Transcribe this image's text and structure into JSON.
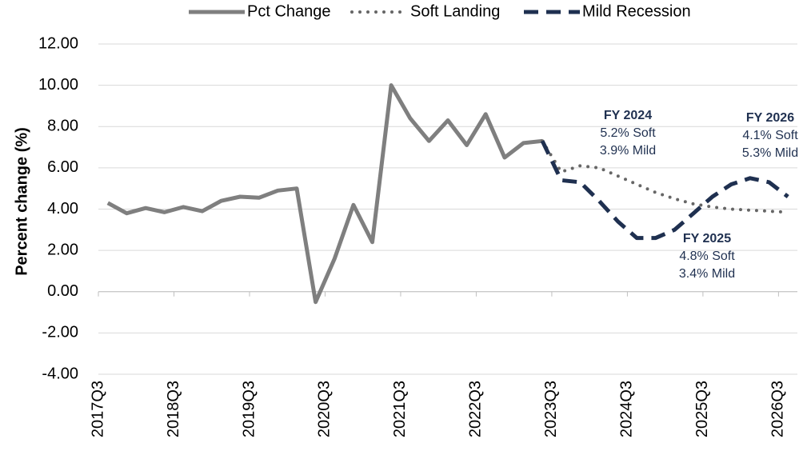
{
  "chart_data": {
    "type": "line",
    "y_label": "Percent change (%)",
    "categories": [
      "2017Q3",
      null,
      null,
      null,
      "2018Q3",
      null,
      null,
      null,
      "2019Q3",
      null,
      null,
      null,
      "2020Q3",
      null,
      null,
      null,
      "2021Q3",
      null,
      null,
      null,
      "2022Q3",
      null,
      null,
      null,
      "2023Q3",
      null,
      null,
      null,
      "2024Q3",
      null,
      null,
      null,
      "2025Q3",
      null,
      null,
      null,
      "2026Q3"
    ],
    "series": [
      {
        "name": "Pct Change",
        "color": "#7f7f7f",
        "style": "solid",
        "values": [
          4.3,
          3.8,
          4.05,
          3.85,
          4.1,
          3.9,
          4.4,
          4.6,
          4.55,
          4.9,
          5.0,
          -0.5,
          1.6,
          4.2,
          2.4,
          10.0,
          8.4,
          7.3,
          8.3,
          7.1,
          8.6,
          6.5,
          7.2,
          7.3,
          null,
          null,
          null,
          null,
          null,
          null,
          null,
          null,
          null,
          null,
          null,
          null,
          null
        ]
      },
      {
        "name": "Soft Landing",
        "color": "#666666",
        "style": "dotted",
        "values": [
          null,
          null,
          null,
          null,
          null,
          null,
          null,
          null,
          null,
          null,
          null,
          null,
          null,
          null,
          null,
          null,
          null,
          null,
          null,
          null,
          null,
          null,
          null,
          7.3,
          5.8,
          6.1,
          6.0,
          5.6,
          5.2,
          4.8,
          4.5,
          4.25,
          4.1,
          4.0,
          3.95,
          3.9,
          3.85
        ]
      },
      {
        "name": "Mild Recession",
        "color": "#1f3050",
        "style": "dashed",
        "values": [
          null,
          null,
          null,
          null,
          null,
          null,
          null,
          null,
          null,
          null,
          null,
          null,
          null,
          null,
          null,
          null,
          null,
          null,
          null,
          null,
          null,
          null,
          null,
          7.3,
          5.4,
          5.3,
          4.4,
          3.4,
          2.6,
          2.6,
          3.0,
          3.8,
          4.6,
          5.2,
          5.5,
          5.3,
          4.6
        ]
      }
    ],
    "ylim": [
      -4,
      12
    ],
    "yticks": [
      {
        "value": -4,
        "label": "-4.00"
      },
      {
        "value": -2,
        "label": "-2.00"
      },
      {
        "value": 0,
        "label": "0.00"
      },
      {
        "value": 2,
        "label": "2.00"
      },
      {
        "value": 4,
        "label": "4.00"
      },
      {
        "value": 6,
        "label": "6.00"
      },
      {
        "value": 8,
        "label": "8.00"
      },
      {
        "value": 10,
        "label": "10.00"
      },
      {
        "value": 12,
        "label": "12.00"
      }
    ],
    "grid": true,
    "legend": "top",
    "annotations": [
      {
        "title": "FY 2024",
        "lines": [
          "5.2% Soft",
          "3.9% Mild"
        ]
      },
      {
        "title": "FY 2025",
        "lines": [
          "4.8% Soft",
          "3.4% Mild"
        ]
      },
      {
        "title": "FY 2026",
        "lines": [
          "4.1% Soft",
          "5.3% Mild"
        ]
      }
    ]
  }
}
